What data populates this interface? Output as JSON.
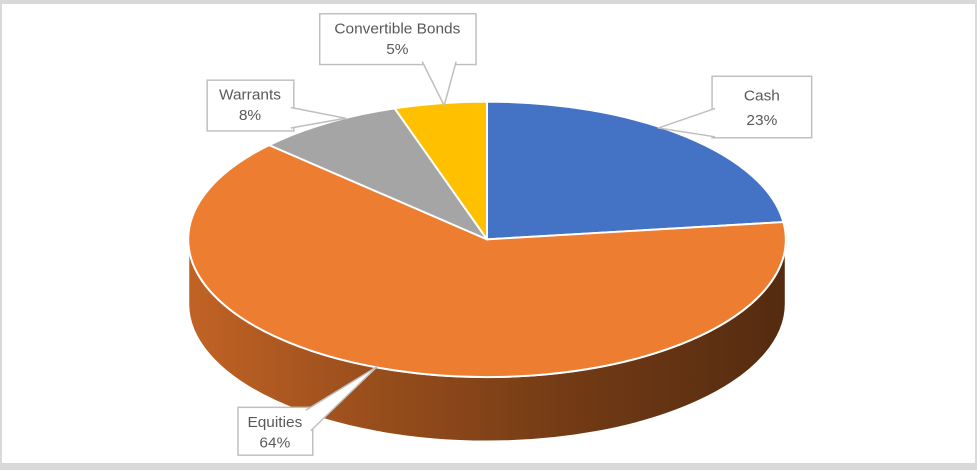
{
  "chart_data": {
    "type": "pie",
    "variant": "3d-pie",
    "title": "",
    "legend": "none",
    "start_angle_deg": 0,
    "direction": "clockwise",
    "label_style": "callout boxes with category name and percentage",
    "slices": [
      {
        "label": "Cash",
        "value": 23,
        "pct_label": "23%",
        "color": "#4472C4"
      },
      {
        "label": "Equities",
        "value": 64,
        "pct_label": "64%",
        "color": "#ED7D31"
      },
      {
        "label": "Warrants",
        "value": 8,
        "pct_label": "8%",
        "color": "#A5A5A5"
      },
      {
        "label": "Convertible Bonds",
        "value": 5,
        "pct_label": "5%",
        "color": "#FFC000"
      }
    ],
    "side_gradient": [
      {
        "offset": 0,
        "color": "#C16325"
      },
      {
        "offset": 30,
        "color": "#9A4E1C"
      },
      {
        "offset": 65,
        "color": "#713A15"
      },
      {
        "offset": 100,
        "color": "#542B10"
      }
    ],
    "callout_border_color": "#BFBFBF",
    "label_text_color": "#595959",
    "slice_border_color": "#FFFFFF",
    "frame_border_color": "#D9D9D9"
  }
}
